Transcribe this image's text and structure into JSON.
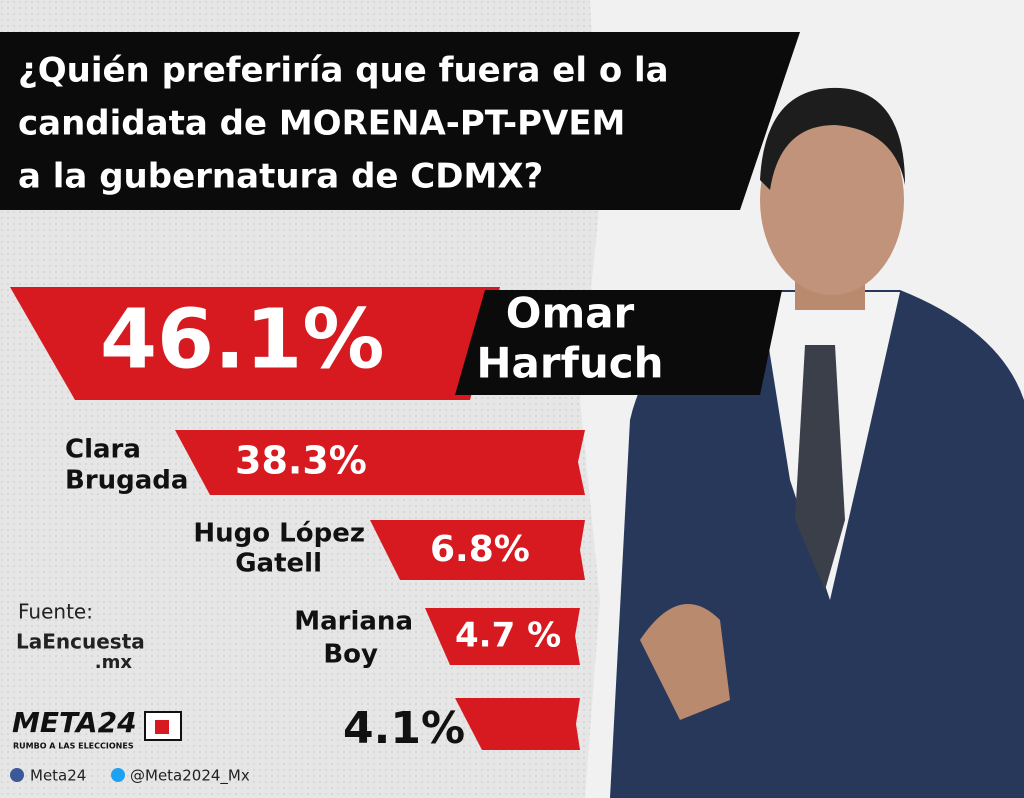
{
  "header": {
    "title_lines": [
      "¿Quién preferiría que fuera el o la",
      "candidata de MORENA-PT-PVEM",
      "a la gubernatura de CDMX?"
    ]
  },
  "results": [
    {
      "name_lines": [
        "Omar",
        "Harfuch"
      ],
      "value_label": "46.1%"
    },
    {
      "name_lines": [
        "Clara",
        "Brugada"
      ],
      "value_label": "38.3%"
    },
    {
      "name_lines": [
        "Hugo López",
        "Gatell"
      ],
      "value_label": "6.8%"
    },
    {
      "name_lines": [
        "Mariana",
        "Boy"
      ],
      "value_label": "4.7 %"
    },
    {
      "value_label": "4.1%"
    }
  ],
  "source": {
    "label": "Fuente:",
    "name": "LaEncuesta",
    "suffix": ".mx"
  },
  "logo": {
    "name": "META24",
    "tagline": "RUMBO A LAS ELECCIONES"
  },
  "footer": {
    "facebook": "Meta24",
    "twitter": "@Meta2024_Mx"
  }
}
